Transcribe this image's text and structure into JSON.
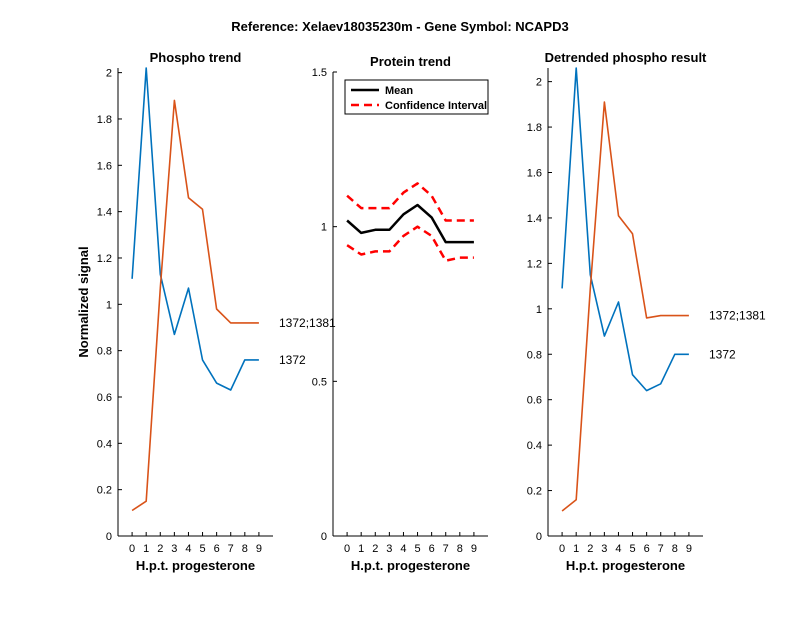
{
  "figure_title": "Reference:  Xelaev18035230m - Gene Symbol:  NCAPD3",
  "colors": {
    "blue": "#0072BD",
    "orange": "#D95319",
    "black": "#000000",
    "red": "#FF0000"
  },
  "chart_data": [
    {
      "id": "phospho",
      "type": "line",
      "title": "Phospho trend",
      "xlabel": "H.p.t. progesterone",
      "ylabel": "Normalized signal",
      "xlim": [
        -1,
        10
      ],
      "ylim": [
        0,
        2.02
      ],
      "xticks": [
        0,
        1,
        2,
        3,
        4,
        5,
        6,
        7,
        8,
        9
      ],
      "yticks": [
        0,
        0.2,
        0.4,
        0.6,
        0.8,
        1,
        1.2,
        1.4,
        1.6,
        1.8,
        2
      ],
      "ytick_labels": [
        "0",
        "0.2",
        "0.4",
        "0.6",
        "0.8",
        "1",
        "1.2",
        "1.4",
        "1.6",
        "1.8",
        "2"
      ],
      "series": [
        {
          "name": "1372",
          "color": "#0072BD",
          "dashed": false,
          "x": [
            0,
            1,
            2,
            3,
            4,
            5,
            6,
            7,
            8,
            9
          ],
          "y": [
            1.11,
            2.02,
            1.13,
            0.87,
            1.07,
            0.76,
            0.66,
            0.63,
            0.76,
            0.76
          ]
        },
        {
          "name": "1372;1381",
          "color": "#D95319",
          "dashed": false,
          "x": [
            0,
            1,
            2,
            3,
            4,
            5,
            6,
            7,
            8,
            9
          ],
          "y": [
            0.11,
            0.15,
            1.07,
            1.88,
            1.46,
            1.41,
            0.98,
            0.92,
            0.92,
            0.92
          ]
        }
      ],
      "end_labels": [
        {
          "text": "1372;1381",
          "y": 0.92
        },
        {
          "text": "1372",
          "y": 0.76
        }
      ]
    },
    {
      "id": "protein",
      "type": "line",
      "title": "Protein trend",
      "xlabel": "H.p.t. progesterone",
      "ylabel": "",
      "xlim": [
        -1,
        10
      ],
      "ylim": [
        0,
        1.5
      ],
      "xticks": [
        0,
        1,
        2,
        3,
        4,
        5,
        6,
        7,
        8,
        9
      ],
      "yticks": [
        0,
        0.5,
        1,
        1.5
      ],
      "ytick_labels": [
        "0",
        "0.5",
        "1",
        "1.5"
      ],
      "series": [
        {
          "name": "Mean",
          "color": "#000000",
          "dashed": false,
          "width": 2.5,
          "x": [
            0,
            1,
            2,
            3,
            4,
            5,
            6,
            7,
            8,
            9
          ],
          "y": [
            1.02,
            0.98,
            0.99,
            0.99,
            1.04,
            1.07,
            1.03,
            0.95,
            0.95,
            0.95
          ]
        },
        {
          "name": "Confidence Interval",
          "color": "#FF0000",
          "dashed": true,
          "width": 2.5,
          "x": [
            0,
            1,
            2,
            3,
            4,
            5,
            6,
            7,
            8,
            9
          ],
          "y": [
            1.1,
            1.06,
            1.06,
            1.06,
            1.11,
            1.14,
            1.1,
            1.02,
            1.02,
            1.02
          ]
        },
        {
          "name": "",
          "color": "#FF0000",
          "dashed": true,
          "width": 2.5,
          "x": [
            0,
            1,
            2,
            3,
            4,
            5,
            6,
            7,
            8,
            9
          ],
          "y": [
            0.94,
            0.91,
            0.92,
            0.92,
            0.97,
            1.0,
            0.97,
            0.89,
            0.9,
            0.9
          ]
        }
      ],
      "legend": {
        "placement": "top-left",
        "entries": [
          {
            "label": "Mean",
            "color": "#000000",
            "dashed": false
          },
          {
            "label": "Confidence Interval",
            "color": "#FF0000",
            "dashed": true
          }
        ]
      }
    },
    {
      "id": "detrended",
      "type": "line",
      "title": "Detrended phospho result",
      "xlabel": "H.p.t. progesterone",
      "ylabel": "",
      "xlim": [
        -1,
        10
      ],
      "ylim": [
        0,
        2.06
      ],
      "xticks": [
        0,
        1,
        2,
        3,
        4,
        5,
        6,
        7,
        8,
        9
      ],
      "yticks": [
        0,
        0.2,
        0.4,
        0.6,
        0.8,
        1,
        1.2,
        1.4,
        1.6,
        1.8,
        2
      ],
      "ytick_labels": [
        "0",
        "0.2",
        "0.4",
        "0.6",
        "0.8",
        "1",
        "1.2",
        "1.4",
        "1.6",
        "1.8",
        "2"
      ],
      "series": [
        {
          "name": "1372",
          "color": "#0072BD",
          "dashed": false,
          "x": [
            0,
            1,
            2,
            3,
            4,
            5,
            6,
            7,
            8,
            9
          ],
          "y": [
            1.09,
            2.06,
            1.15,
            0.88,
            1.03,
            0.71,
            0.64,
            0.67,
            0.8,
            0.8
          ]
        },
        {
          "name": "1372;1381",
          "color": "#D95319",
          "dashed": false,
          "x": [
            0,
            1,
            2,
            3,
            4,
            5,
            6,
            7,
            8,
            9
          ],
          "y": [
            0.11,
            0.16,
            1.09,
            1.91,
            1.41,
            1.33,
            0.96,
            0.97,
            0.97,
            0.97
          ]
        }
      ],
      "end_labels": [
        {
          "text": "1372;1381",
          "y": 0.97
        },
        {
          "text": "1372",
          "y": 0.8
        }
      ]
    }
  ]
}
